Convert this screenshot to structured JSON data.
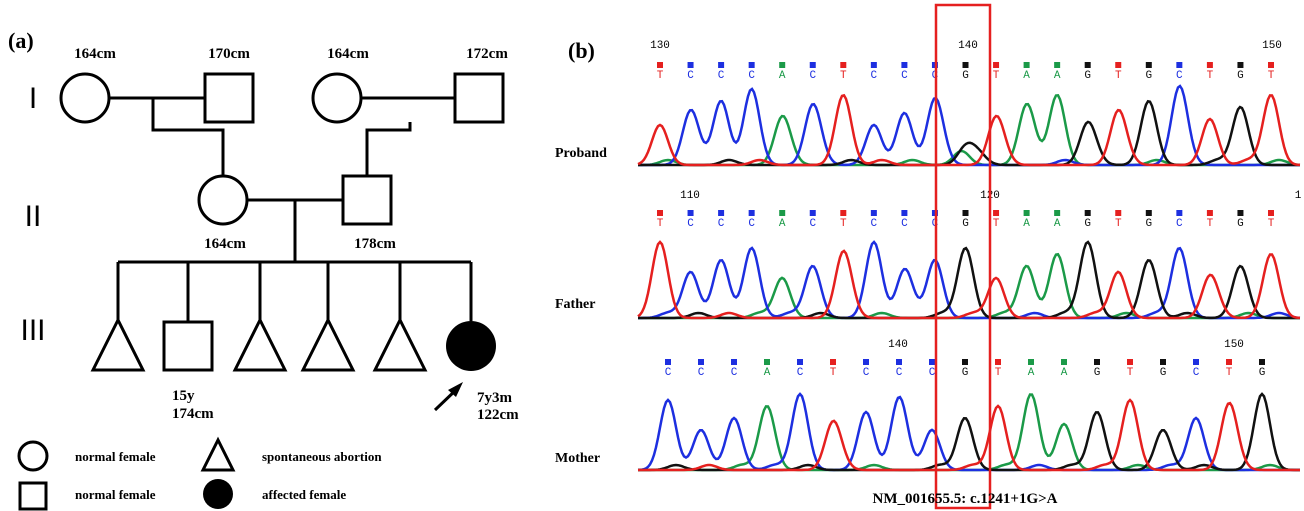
{
  "panel_labels": [
    "(a)",
    "(b)"
  ],
  "pedigree": {
    "generations": [
      "I",
      "II",
      "III"
    ],
    "gen1": [
      "164cm",
      "170cm",
      "164cm",
      "172cm"
    ],
    "gen2": [
      "164cm",
      "178cm"
    ],
    "gen3": {
      "male_age": "15y",
      "male_height": "174cm",
      "proband_age": "7y3m",
      "proband_height": "122cm"
    },
    "legend": [
      "normal female",
      "spontaneous abortion",
      "normal female",
      "affected female"
    ]
  },
  "chromatograms": [
    {
      "sample": "Proband",
      "positions": [
        130,
        140,
        150
      ],
      "sequence": [
        "T",
        "C",
        "C",
        "C",
        "A",
        "C",
        "T",
        "C",
        "C",
        "C",
        "G",
        "T",
        "A",
        "A",
        "G",
        "T",
        "G",
        "C",
        "T",
        "G",
        "T"
      ]
    },
    {
      "sample": "Father",
      "positions": [
        110,
        120,
        1
      ],
      "sequence": [
        "T",
        "C",
        "C",
        "C",
        "A",
        "C",
        "T",
        "C",
        "C",
        "C",
        "G",
        "T",
        "A",
        "A",
        "G",
        "T",
        "G",
        "C",
        "T",
        "G",
        "T"
      ]
    },
    {
      "sample": "Mother",
      "positions": [
        140,
        150
      ],
      "sequence": [
        "C",
        "C",
        "C",
        "A",
        "C",
        "T",
        "C",
        "C",
        "C",
        "G",
        "T",
        "A",
        "A",
        "G",
        "T",
        "G",
        "C",
        "T",
        "G"
      ]
    }
  ],
  "caption": "NM_001655.5: c.1241+1G>A"
}
